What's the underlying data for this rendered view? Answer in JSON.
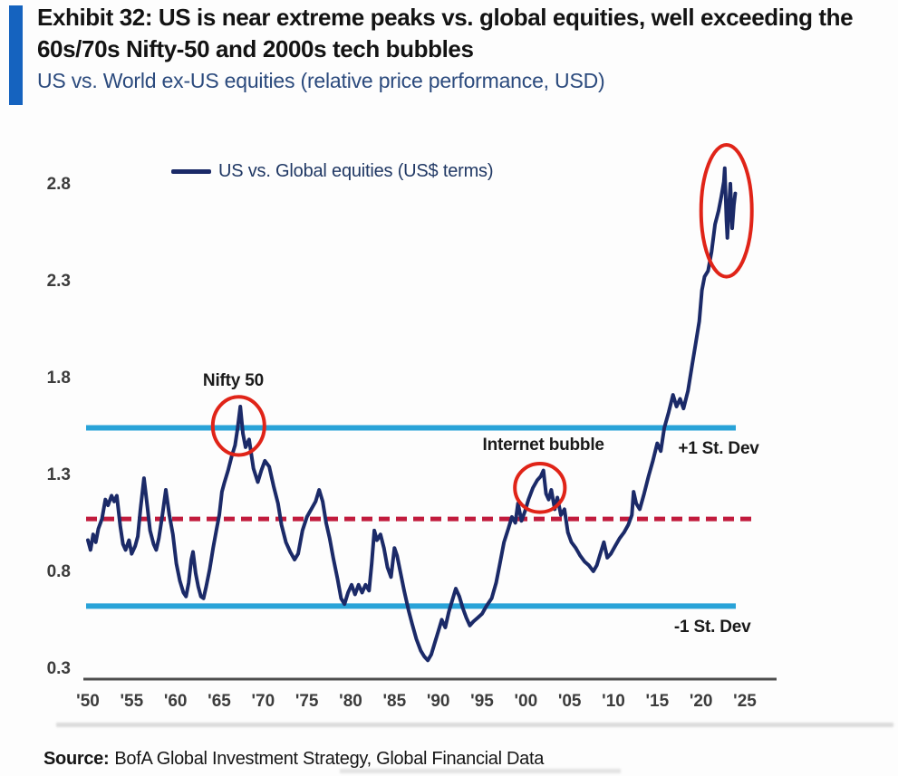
{
  "header": {
    "title": "Exhibit 32: US is near extreme peaks vs. global equities, well exceeding the 60s/70s Nifty-50 and 2000s tech bubbles",
    "subtitle": "US vs. World ex-US equities (relative price performance, USD)"
  },
  "source": {
    "label": "Source:",
    "text": "BofA Global Investment Strategy, Global Financial Data"
  },
  "colors": {
    "accent_bar": "#1563bf",
    "series_line": "#1b2a68",
    "stdev_band": "#29a3d8",
    "mean_dashed": "#c11b3d",
    "annotation_red": "#e02418",
    "axis_line": "#4d4d4d",
    "subtitle_blue": "#2b4a7d"
  },
  "chart_data": {
    "type": "line",
    "title": "Exhibit 32: US is near extreme peaks vs. global equities, well exceeding the 60s/70s Nifty-50 and 2000s tech bubbles",
    "subtitle": "US vs. World ex-US equities (relative price performance, USD)",
    "legend": [
      "US vs. Global equities (US$ terms)"
    ],
    "legend_position": "top-left",
    "grid": false,
    "xlim": [
      1950,
      2025
    ],
    "ylim": [
      0.3,
      2.8
    ],
    "y_ticks": [
      {
        "label": "2.8",
        "value": 2.8
      },
      {
        "label": "2.3",
        "value": 2.3
      },
      {
        "label": "1.8",
        "value": 1.8
      },
      {
        "label": "1.3",
        "value": 1.3
      },
      {
        "label": "0.8",
        "value": 0.8
      },
      {
        "label": "0.3",
        "value": 0.3
      }
    ],
    "x_ticks": [
      {
        "label": "'50",
        "year": 1950
      },
      {
        "label": "'55",
        "year": 1955
      },
      {
        "label": "'60",
        "year": 1960
      },
      {
        "label": "'65",
        "year": 1965
      },
      {
        "label": "'70",
        "year": 1970
      },
      {
        "label": "'75",
        "year": 1975
      },
      {
        "label": "'80",
        "year": 1980
      },
      {
        "label": "'85",
        "year": 1985
      },
      {
        "label": "'90",
        "year": 1990
      },
      {
        "label": "'95",
        "year": 1995
      },
      {
        "label": "'00",
        "year": 2000
      },
      {
        "label": "'05",
        "year": 2005
      },
      {
        "label": "'10",
        "year": 2010
      },
      {
        "label": "'15",
        "year": 2015
      },
      {
        "label": "'20",
        "year": 2020
      },
      {
        "label": "'25",
        "year": 2025
      }
    ],
    "reference_lines": [
      {
        "name": "plus-1-stdev-line",
        "label": "+1 St. Dev",
        "value": 1.55,
        "style": "solid",
        "color": "#29a3d8",
        "label_pos": {
          "x": 2022.0,
          "y": 1.44
        }
      },
      {
        "name": "mean-line",
        "label": "",
        "value": 1.08,
        "style": "dashed",
        "color": "#c11b3d"
      },
      {
        "name": "minus-1-stdev-line",
        "label": "-1 St. Dev",
        "value": 0.63,
        "style": "solid",
        "color": "#29a3d8",
        "label_pos": {
          "x": 2021.3,
          "y": 0.52
        }
      }
    ],
    "annotations": [
      {
        "name": "nifty-50",
        "text": "Nifty 50",
        "text_pos": {
          "x": 1966.6,
          "y": 1.79
        },
        "ellipse": {
          "cx": 1967.2,
          "cy": 1.56,
          "rx": 2.95,
          "ry": 0.15
        }
      },
      {
        "name": "internet-bubble",
        "text": "Internet bubble",
        "text_pos": {
          "x": 2002.0,
          "y": 1.46
        },
        "ellipse": {
          "cx": 2001.6,
          "cy": 1.24,
          "rx": 2.85,
          "ry": 0.125
        }
      },
      {
        "name": "2020s-peak",
        "text": "",
        "ellipse": {
          "cx": 2022.9,
          "cy": 2.67,
          "rx": 2.9,
          "ry": 0.34
        }
      }
    ],
    "series": [
      {
        "name": "US vs. Global equities (US$ terms)",
        "color": "#1b2a68",
        "points": [
          [
            1950.0,
            0.97
          ],
          [
            1950.3,
            0.92
          ],
          [
            1950.6,
            1.0
          ],
          [
            1950.9,
            0.96
          ],
          [
            1951.2,
            1.03
          ],
          [
            1951.6,
            1.08
          ],
          [
            1952.0,
            1.18
          ],
          [
            1952.3,
            1.15
          ],
          [
            1952.7,
            1.2
          ],
          [
            1953.0,
            1.17
          ],
          [
            1953.3,
            1.2
          ],
          [
            1953.7,
            1.04
          ],
          [
            1954.0,
            0.95
          ],
          [
            1954.3,
            0.92
          ],
          [
            1954.7,
            0.97
          ],
          [
            1955.0,
            0.9
          ],
          [
            1955.4,
            0.94
          ],
          [
            1955.7,
            0.99
          ],
          [
            1956.0,
            1.13
          ],
          [
            1956.4,
            1.29
          ],
          [
            1956.8,
            1.14
          ],
          [
            1957.1,
            1.02
          ],
          [
            1957.5,
            0.95
          ],
          [
            1957.8,
            0.92
          ],
          [
            1958.1,
            0.98
          ],
          [
            1958.5,
            1.1
          ],
          [
            1958.9,
            1.23
          ],
          [
            1959.3,
            1.1
          ],
          [
            1959.7,
            1.0
          ],
          [
            1960.1,
            0.85
          ],
          [
            1960.5,
            0.76
          ],
          [
            1960.9,
            0.7
          ],
          [
            1961.2,
            0.68
          ],
          [
            1961.5,
            0.75
          ],
          [
            1961.8,
            0.87
          ],
          [
            1962.0,
            0.91
          ],
          [
            1962.3,
            0.8
          ],
          [
            1962.6,
            0.73
          ],
          [
            1962.9,
            0.68
          ],
          [
            1963.2,
            0.67
          ],
          [
            1963.5,
            0.73
          ],
          [
            1963.9,
            0.82
          ],
          [
            1964.3,
            0.93
          ],
          [
            1964.7,
            1.03
          ],
          [
            1965.0,
            1.1
          ],
          [
            1965.3,
            1.22
          ],
          [
            1965.6,
            1.27
          ],
          [
            1966.0,
            1.33
          ],
          [
            1966.4,
            1.4
          ],
          [
            1966.8,
            1.46
          ],
          [
            1967.1,
            1.55
          ],
          [
            1967.4,
            1.66
          ],
          [
            1967.7,
            1.52
          ],
          [
            1968.0,
            1.45
          ],
          [
            1968.4,
            1.49
          ],
          [
            1968.9,
            1.34
          ],
          [
            1969.4,
            1.27
          ],
          [
            1969.8,
            1.33
          ],
          [
            1970.2,
            1.38
          ],
          [
            1970.7,
            1.35
          ],
          [
            1971.2,
            1.25
          ],
          [
            1971.7,
            1.16
          ],
          [
            1972.1,
            1.05
          ],
          [
            1972.6,
            0.96
          ],
          [
            1973.1,
            0.91
          ],
          [
            1973.6,
            0.87
          ],
          [
            1974.0,
            0.9
          ],
          [
            1974.5,
            1.02
          ],
          [
            1975.0,
            1.09
          ],
          [
            1975.5,
            1.13
          ],
          [
            1976.0,
            1.17
          ],
          [
            1976.4,
            1.23
          ],
          [
            1976.8,
            1.17
          ],
          [
            1977.2,
            1.06
          ],
          [
            1977.6,
            0.98
          ],
          [
            1978.0,
            0.88
          ],
          [
            1978.5,
            0.77
          ],
          [
            1978.9,
            0.67
          ],
          [
            1979.3,
            0.64
          ],
          [
            1979.7,
            0.7
          ],
          [
            1980.1,
            0.74
          ],
          [
            1980.5,
            0.69
          ],
          [
            1980.9,
            0.74
          ],
          [
            1981.3,
            0.7
          ],
          [
            1981.7,
            0.74
          ],
          [
            1982.1,
            0.71
          ],
          [
            1982.4,
            0.85
          ],
          [
            1982.7,
            1.02
          ],
          [
            1983.0,
            0.97
          ],
          [
            1983.4,
            1.0
          ],
          [
            1983.8,
            0.93
          ],
          [
            1984.2,
            0.83
          ],
          [
            1984.6,
            0.78
          ],
          [
            1985.0,
            0.93
          ],
          [
            1985.3,
            0.89
          ],
          [
            1985.7,
            0.8
          ],
          [
            1986.1,
            0.71
          ],
          [
            1986.6,
            0.61
          ],
          [
            1987.0,
            0.54
          ],
          [
            1987.5,
            0.46
          ],
          [
            1988.0,
            0.4
          ],
          [
            1988.4,
            0.37
          ],
          [
            1988.8,
            0.35
          ],
          [
            1989.2,
            0.38
          ],
          [
            1989.6,
            0.44
          ],
          [
            1990.0,
            0.5
          ],
          [
            1990.4,
            0.56
          ],
          [
            1990.8,
            0.52
          ],
          [
            1991.2,
            0.6
          ],
          [
            1991.6,
            0.66
          ],
          [
            1992.0,
            0.72
          ],
          [
            1992.4,
            0.68
          ],
          [
            1992.8,
            0.62
          ],
          [
            1993.2,
            0.57
          ],
          [
            1993.6,
            0.53
          ],
          [
            1994.0,
            0.55
          ],
          [
            1994.5,
            0.57
          ],
          [
            1995.0,
            0.59
          ],
          [
            1995.5,
            0.63
          ],
          [
            1996.1,
            0.67
          ],
          [
            1996.6,
            0.75
          ],
          [
            1997.0,
            0.84
          ],
          [
            1997.5,
            0.96
          ],
          [
            1998.0,
            1.03
          ],
          [
            1998.4,
            1.09
          ],
          [
            1998.8,
            1.06
          ],
          [
            1999.1,
            1.16
          ],
          [
            1999.5,
            1.07
          ],
          [
            1999.9,
            1.12
          ],
          [
            2000.3,
            1.18
          ],
          [
            2000.8,
            1.24
          ],
          [
            2001.3,
            1.28
          ],
          [
            2001.7,
            1.3
          ],
          [
            2002.0,
            1.33
          ],
          [
            2002.3,
            1.21
          ],
          [
            2002.6,
            1.18
          ],
          [
            2002.9,
            1.23
          ],
          [
            2003.3,
            1.13
          ],
          [
            2003.6,
            1.19
          ],
          [
            2004.0,
            1.1
          ],
          [
            2004.4,
            1.13
          ],
          [
            2004.8,
            1.01
          ],
          [
            2005.2,
            0.96
          ],
          [
            2005.7,
            0.93
          ],
          [
            2006.2,
            0.89
          ],
          [
            2006.7,
            0.86
          ],
          [
            2007.2,
            0.84
          ],
          [
            2007.7,
            0.81
          ],
          [
            2008.1,
            0.84
          ],
          [
            2008.5,
            0.9
          ],
          [
            2008.9,
            0.96
          ],
          [
            2009.3,
            0.88
          ],
          [
            2009.7,
            0.9
          ],
          [
            2010.2,
            0.94
          ],
          [
            2010.7,
            0.98
          ],
          [
            2011.2,
            1.01
          ],
          [
            2011.7,
            1.05
          ],
          [
            2012.1,
            1.1
          ],
          [
            2012.3,
            1.22
          ],
          [
            2012.6,
            1.16
          ],
          [
            2013.0,
            1.13
          ],
          [
            2013.5,
            1.21
          ],
          [
            2014.0,
            1.3
          ],
          [
            2014.5,
            1.38
          ],
          [
            2015.0,
            1.47
          ],
          [
            2015.4,
            1.43
          ],
          [
            2015.8,
            1.55
          ],
          [
            2016.3,
            1.63
          ],
          [
            2016.8,
            1.72
          ],
          [
            2017.2,
            1.66
          ],
          [
            2017.6,
            1.7
          ],
          [
            2018.0,
            1.65
          ],
          [
            2018.5,
            1.74
          ],
          [
            2019.0,
            1.88
          ],
          [
            2019.4,
            1.99
          ],
          [
            2019.8,
            2.1
          ],
          [
            2020.1,
            2.26
          ],
          [
            2020.4,
            2.33
          ],
          [
            2020.8,
            2.36
          ],
          [
            2021.2,
            2.46
          ],
          [
            2021.6,
            2.6
          ],
          [
            2022.0,
            2.67
          ],
          [
            2022.3,
            2.74
          ],
          [
            2022.6,
            2.82
          ],
          [
            2022.7,
            2.89
          ],
          [
            2022.9,
            2.62
          ],
          [
            2023.0,
            2.53
          ],
          [
            2023.2,
            2.7
          ],
          [
            2023.35,
            2.81
          ],
          [
            2023.55,
            2.58
          ],
          [
            2023.75,
            2.7
          ],
          [
            2023.9,
            2.76
          ]
        ]
      }
    ]
  }
}
